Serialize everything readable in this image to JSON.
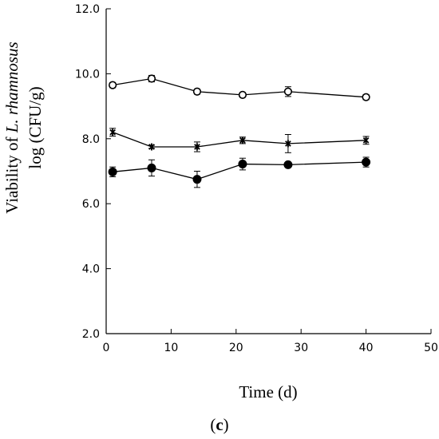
{
  "chart_data": {
    "type": "line",
    "title": "",
    "xlabel": "Time (d)",
    "ylabel_line1_prefix": "Viability of ",
    "ylabel_line1_species": "L. rhamnosus",
    "ylabel_line2": "log (CFU/g)",
    "panel_label_open": "(",
    "panel_label_letter": "c",
    "panel_label_close": ")",
    "xlim": [
      0,
      50
    ],
    "ylim": [
      2.0,
      12.0
    ],
    "x_ticks": [
      0,
      10,
      20,
      30,
      40,
      50
    ],
    "x_tick_labels": [
      "0",
      "10",
      "20",
      "30",
      "40",
      "50"
    ],
    "y_ticks": [
      2,
      4,
      6,
      8,
      10,
      12
    ],
    "y_tick_labels": [
      "2.0",
      "4.0",
      "6.0",
      "8.0",
      "10.0",
      "12.0"
    ],
    "grid": false,
    "series": [
      {
        "marker": "open-circle",
        "color": "#000000",
        "x": [
          1,
          7,
          14,
          21,
          28,
          40
        ],
        "y": [
          9.65,
          9.85,
          9.45,
          9.35,
          9.45,
          9.28
        ],
        "err": [
          0.08,
          0.1,
          0.08,
          0.07,
          0.15,
          0.08
        ]
      },
      {
        "marker": "asterisk",
        "color": "#000000",
        "x": [
          1,
          7,
          14,
          21,
          28,
          40
        ],
        "y": [
          8.2,
          7.75,
          7.75,
          7.95,
          7.85,
          7.95
        ],
        "err": [
          0.12,
          0.05,
          0.15,
          0.1,
          0.28,
          0.12
        ]
      },
      {
        "marker": "filled-circle",
        "color": "#000000",
        "x": [
          1,
          7,
          14,
          21,
          28,
          40
        ],
        "y": [
          6.98,
          7.1,
          6.75,
          7.22,
          7.2,
          7.28
        ],
        "err": [
          0.15,
          0.25,
          0.25,
          0.18,
          0.05,
          0.15
        ]
      }
    ]
  }
}
